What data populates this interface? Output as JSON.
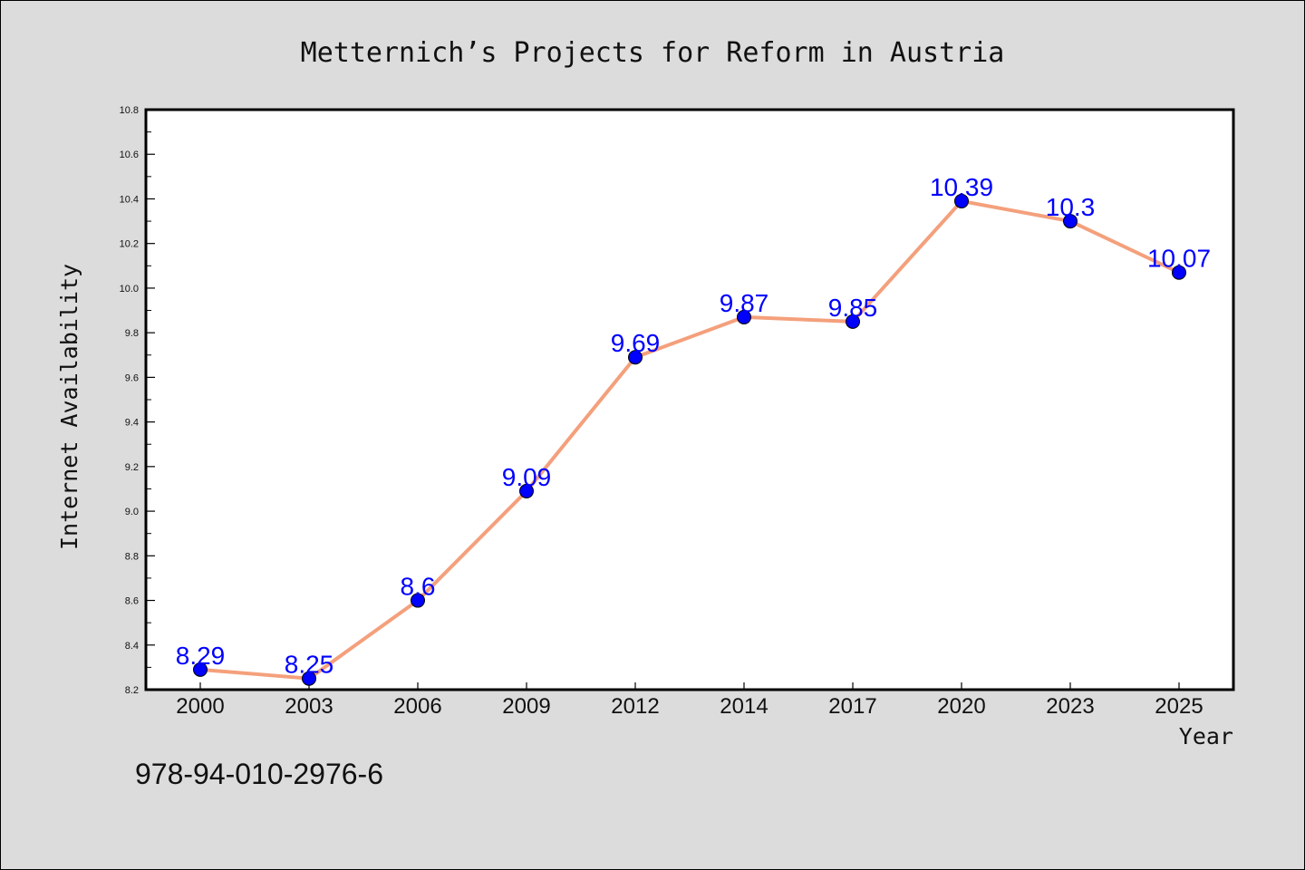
{
  "chart_data": {
    "type": "line",
    "title": "Metternich’s Projects for Reform in Austria",
    "xlabel": "Year",
    "ylabel": "Internet Availability",
    "categories": [
      "2000",
      "2003",
      "2006",
      "2009",
      "2012",
      "2014",
      "2017",
      "2020",
      "2023",
      "2025"
    ],
    "series": [
      {
        "values": [
          8.29,
          8.25,
          8.6,
          9.09,
          9.69,
          9.87,
          9.85,
          10.39,
          10.3,
          10.07
        ],
        "labels": [
          "8.29",
          "8.25",
          "8.6",
          "9.09",
          "9.69",
          "9.87",
          "9.85",
          "10.39",
          "10.3",
          "10.07"
        ],
        "line_color": "#f4a07c",
        "marker_color": "#0000ff"
      }
    ],
    "ylim": [
      8.2,
      10.8
    ],
    "yticks": [
      "8.2",
      "8.4",
      "8.6",
      "8.8",
      "9.0",
      "9.2",
      "9.4",
      "9.6",
      "9.8",
      "10.0",
      "10.2",
      "10.4",
      "10.6",
      "10.8"
    ],
    "grid": false,
    "legend": "none"
  },
  "annotation": "978-94-010-2976-6"
}
